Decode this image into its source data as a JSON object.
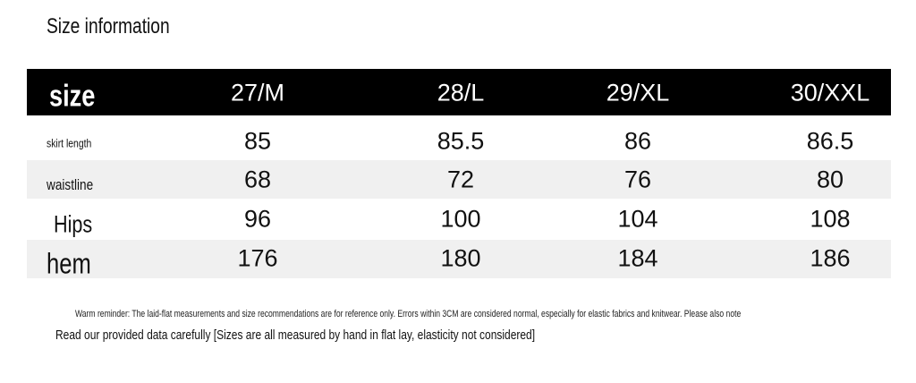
{
  "title": "Size information",
  "table": {
    "header": [
      "size",
      "27/M",
      "28/L",
      "29/XL",
      "30/XXL"
    ],
    "rows": [
      [
        "skirt length",
        85,
        85.5,
        86,
        86.5
      ],
      [
        "waistline",
        68,
        72,
        76,
        80
      ],
      [
        "Hips",
        96,
        100,
        104,
        108
      ],
      [
        "hem",
        176,
        180,
        184,
        186
      ]
    ]
  },
  "notes": [
    "Warm reminder: The laid-flat measurements and size recommendations are for reference only. Errors within 3CM are considered normal, especially for elastic fabrics and knitwear. Please also note",
    "Read our provided data carefully [Sizes are all measured by hand in flat lay, elasticity not considered]"
  ]
}
